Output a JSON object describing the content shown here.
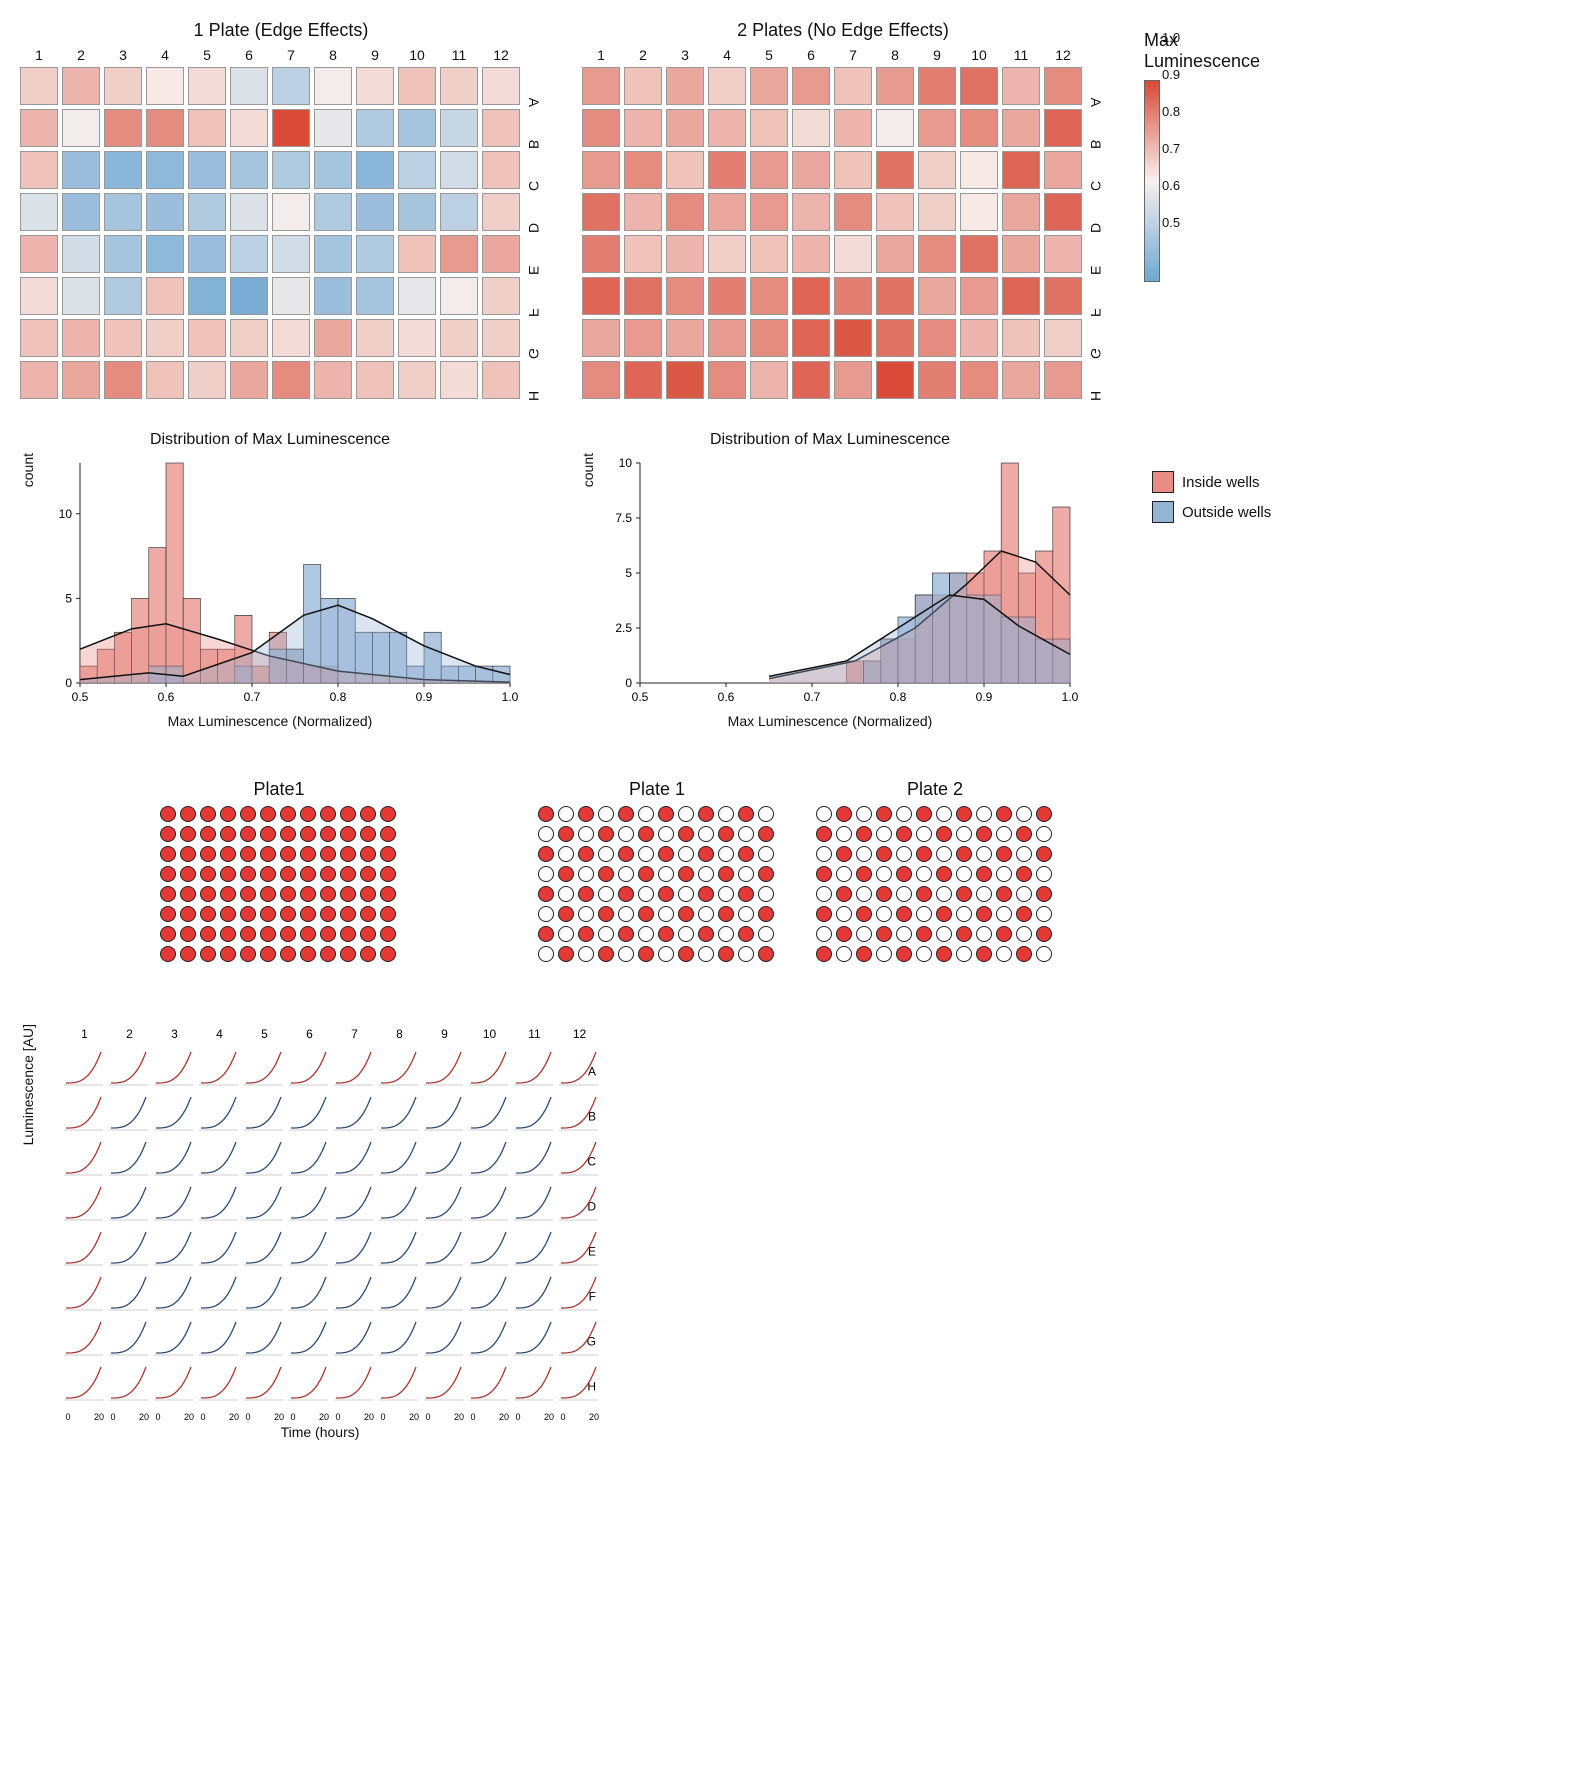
{
  "colors": {
    "scale_low": "#6ea7d4",
    "scale_mid": "#f7f0ed",
    "scale_high": "#d94a38",
    "inside_fill": "#e88d86",
    "outside_fill": "#94b4d6",
    "dot_fill": "#e53935",
    "line_red": "#a8352f",
    "line_blue": "#2b4a73",
    "border": "#555555",
    "grid": "#d0d0d0",
    "bg": "#ffffff"
  },
  "heatmap_legend": {
    "title": "Max\nLuminescence",
    "ticks": [
      1.0,
      0.9,
      0.8,
      0.7,
      0.6,
      0.5
    ]
  },
  "columns": [
    "1",
    "2",
    "3",
    "4",
    "5",
    "6",
    "7",
    "8",
    "9",
    "10",
    "11",
    "12"
  ],
  "rows": [
    "A",
    "B",
    "C",
    "D",
    "E",
    "F",
    "G",
    "H"
  ],
  "plate1_title": "1 Plate (Edge Effects)",
  "plate2_title": "2 Plates (No Edge Effects)",
  "plate1_values": [
    [
      0.8,
      0.84,
      0.8,
      0.76,
      0.78,
      0.7,
      0.64,
      0.74,
      0.78,
      0.82,
      0.8,
      0.78
    ],
    [
      0.84,
      0.74,
      0.9,
      0.9,
      0.82,
      0.78,
      1.0,
      0.72,
      0.62,
      0.6,
      0.66,
      0.82
    ],
    [
      0.82,
      0.58,
      0.55,
      0.56,
      0.58,
      0.6,
      0.62,
      0.6,
      0.55,
      0.64,
      0.68,
      0.82
    ],
    [
      0.7,
      0.58,
      0.6,
      0.58,
      0.62,
      0.7,
      0.74,
      0.62,
      0.58,
      0.6,
      0.64,
      0.8
    ],
    [
      0.84,
      0.68,
      0.6,
      0.56,
      0.58,
      0.64,
      0.68,
      0.6,
      0.62,
      0.82,
      0.88,
      0.86
    ],
    [
      0.78,
      0.7,
      0.62,
      0.82,
      0.54,
      0.52,
      0.72,
      0.58,
      0.6,
      0.72,
      0.74,
      0.8
    ],
    [
      0.82,
      0.84,
      0.82,
      0.8,
      0.82,
      0.8,
      0.78,
      0.86,
      0.8,
      0.78,
      0.8,
      0.8
    ],
    [
      0.84,
      0.86,
      0.9,
      0.82,
      0.8,
      0.86,
      0.9,
      0.84,
      0.82,
      0.8,
      0.78,
      0.82
    ]
  ],
  "plate2_values": [
    [
      0.88,
      0.82,
      0.86,
      0.8,
      0.86,
      0.88,
      0.82,
      0.88,
      0.92,
      0.94,
      0.84,
      0.9
    ],
    [
      0.9,
      0.84,
      0.86,
      0.84,
      0.82,
      0.78,
      0.84,
      0.74,
      0.88,
      0.9,
      0.86,
      0.96
    ],
    [
      0.88,
      0.9,
      0.82,
      0.92,
      0.88,
      0.86,
      0.82,
      0.94,
      0.8,
      0.76,
      0.96,
      0.86
    ],
    [
      0.94,
      0.84,
      0.9,
      0.86,
      0.88,
      0.84,
      0.9,
      0.82,
      0.8,
      0.76,
      0.86,
      0.96
    ],
    [
      0.92,
      0.82,
      0.84,
      0.8,
      0.82,
      0.84,
      0.78,
      0.86,
      0.9,
      0.94,
      0.86,
      0.84
    ],
    [
      0.96,
      0.94,
      0.9,
      0.92,
      0.9,
      0.96,
      0.92,
      0.94,
      0.86,
      0.88,
      0.96,
      0.94
    ],
    [
      0.86,
      0.88,
      0.86,
      0.88,
      0.9,
      0.96,
      0.98,
      0.94,
      0.9,
      0.84,
      0.82,
      0.8
    ],
    [
      0.9,
      0.96,
      0.98,
      0.9,
      0.84,
      0.96,
      0.88,
      1.0,
      0.92,
      0.9,
      0.86,
      0.88
    ]
  ],
  "hist_title": "Distribution of Max Luminescence",
  "hist_xlabel": "Max Luminescence (Normalized)",
  "hist_ylabel": "count",
  "hist_legend": {
    "inside": "Inside wells",
    "outside": "Outside wells"
  },
  "hist1": {
    "xlim": [
      0.5,
      1.0
    ],
    "ylim": [
      0,
      13
    ],
    "yticks": [
      0,
      5,
      10
    ],
    "bin_width": 0.02,
    "bins": [
      0.5,
      0.52,
      0.54,
      0.56,
      0.58,
      0.6,
      0.62,
      0.64,
      0.66,
      0.68,
      0.7,
      0.72,
      0.74,
      0.76,
      0.78,
      0.8,
      0.82,
      0.84,
      0.86,
      0.88,
      0.9,
      0.92,
      0.94,
      0.96,
      0.98
    ],
    "inside_counts": [
      1,
      2,
      3,
      5,
      8,
      13,
      5,
      2,
      2,
      4,
      1,
      3,
      2,
      1,
      1,
      0,
      0,
      0,
      0,
      0,
      0,
      0,
      0,
      0,
      0
    ],
    "outside_counts": [
      0,
      0,
      0,
      0,
      1,
      1,
      0,
      0,
      0,
      1,
      0,
      2,
      2,
      7,
      5,
      5,
      3,
      3,
      3,
      1,
      3,
      1,
      1,
      1,
      1
    ],
    "inside_density": [
      [
        0.5,
        2.0
      ],
      [
        0.56,
        3.2
      ],
      [
        0.6,
        3.5
      ],
      [
        0.66,
        2.6
      ],
      [
        0.72,
        1.6
      ],
      [
        0.8,
        0.7
      ],
      [
        0.9,
        0.2
      ],
      [
        1.0,
        0.05
      ]
    ],
    "outside_density": [
      [
        0.5,
        0.2
      ],
      [
        0.58,
        0.6
      ],
      [
        0.62,
        0.4
      ],
      [
        0.7,
        1.8
      ],
      [
        0.76,
        4.0
      ],
      [
        0.8,
        4.6
      ],
      [
        0.84,
        3.8
      ],
      [
        0.9,
        2.2
      ],
      [
        0.96,
        1.0
      ],
      [
        1.0,
        0.5
      ]
    ]
  },
  "hist2": {
    "xlim": [
      0.5,
      1.0
    ],
    "ylim": [
      0,
      10
    ],
    "yticks": [
      0.0,
      2.5,
      5.0,
      7.5,
      10.0
    ],
    "bin_width": 0.02,
    "bins": [
      0.72,
      0.74,
      0.76,
      0.78,
      0.8,
      0.82,
      0.84,
      0.86,
      0.88,
      0.9,
      0.92,
      0.94,
      0.96,
      0.98
    ],
    "inside_counts": [
      0,
      1,
      1,
      2,
      2,
      4,
      4,
      5,
      5,
      6,
      10,
      5,
      6,
      8
    ],
    "outside_counts": [
      0,
      0,
      1,
      2,
      3,
      4,
      5,
      5,
      4,
      4,
      3,
      3,
      2,
      2
    ],
    "inside_density": [
      [
        0.65,
        0.2
      ],
      [
        0.75,
        1.0
      ],
      [
        0.82,
        2.5
      ],
      [
        0.88,
        4.5
      ],
      [
        0.92,
        6.0
      ],
      [
        0.96,
        5.5
      ],
      [
        1.0,
        4.0
      ]
    ],
    "outside_density": [
      [
        0.65,
        0.3
      ],
      [
        0.74,
        1.0
      ],
      [
        0.8,
        2.5
      ],
      [
        0.86,
        4.0
      ],
      [
        0.9,
        3.8
      ],
      [
        0.94,
        2.6
      ],
      [
        1.0,
        1.3
      ]
    ]
  },
  "plate_diagram": {
    "single_title": "Plate1",
    "pair_titles": [
      "Plate 1",
      "Plate 2"
    ],
    "checker_rows": 8,
    "cols": 12
  },
  "time_grid": {
    "ylabel": "Luminescence [AU]",
    "xlabel": "Time (hours)",
    "xticks": [
      0,
      20
    ],
    "rows": 8,
    "cols": 12
  }
}
